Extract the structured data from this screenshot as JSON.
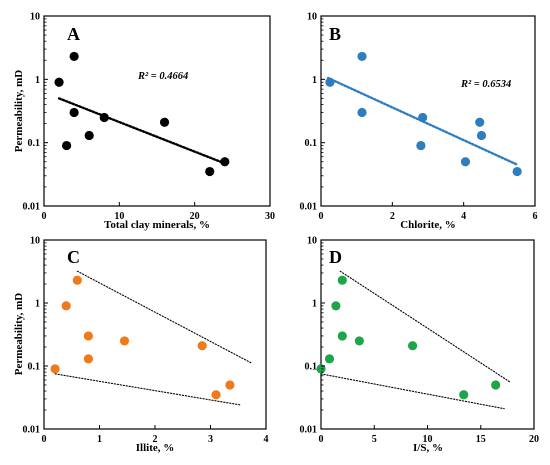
{
  "chart_data": [
    {
      "id": "A",
      "type": "scatter",
      "panel_letter": "A",
      "xlabel": "Total clay minerals, %",
      "ylabel": "Permeability, mD",
      "xlim": [
        0,
        30
      ],
      "ylim": [
        0.01,
        10
      ],
      "yscale": "log",
      "xticks": [
        0,
        10,
        20,
        30
      ],
      "yticks": [
        0.01,
        0.1,
        1,
        10
      ],
      "x": [
        2,
        3,
        4,
        4,
        6,
        8,
        16,
        22,
        24
      ],
      "y": [
        0.9,
        0.09,
        2.3,
        0.3,
        0.13,
        0.25,
        0.21,
        0.035,
        0.05
      ],
      "marker_color": "#000000",
      "annotation": "R² = 0.4664",
      "trendline": {
        "style": "dotted",
        "x": [
          2,
          24
        ],
        "y": [
          0.5,
          0.047
        ]
      }
    },
    {
      "id": "B",
      "type": "scatter",
      "panel_letter": "B",
      "xlabel": "Chlorite, %",
      "ylabel": "",
      "xlim": [
        0,
        6
      ],
      "ylim": [
        0.01,
        10
      ],
      "yscale": "log",
      "xticks": [
        0,
        2,
        4,
        6
      ],
      "yticks": [
        0.01,
        0.1,
        1,
        10
      ],
      "x": [
        0.25,
        1.15,
        1.15,
        2.8,
        2.85,
        4.05,
        4.45,
        4.5,
        5.5
      ],
      "y": [
        0.9,
        2.3,
        0.3,
        0.09,
        0.25,
        0.05,
        0.21,
        0.13,
        0.035
      ],
      "marker_color": "#2e7ebf",
      "annotation": "R² = 0.6534",
      "trendline": {
        "style": "dotted",
        "x": [
          0.2,
          5.5
        ],
        "y": [
          1.05,
          0.045
        ]
      }
    },
    {
      "id": "C",
      "type": "scatter",
      "panel_letter": "C",
      "xlabel": "Illite, %",
      "ylabel": "Permeability, mD",
      "xlim": [
        0,
        4
      ],
      "ylim": [
        0.01,
        10
      ],
      "yscale": "log",
      "xticks": [
        0,
        1,
        2,
        3,
        4
      ],
      "yticks": [
        0.01,
        0.1,
        1,
        10
      ],
      "x": [
        0.2,
        0.4,
        0.6,
        0.8,
        0.8,
        1.45,
        2.85,
        3.1,
        3.35
      ],
      "y": [
        0.09,
        0.9,
        2.3,
        0.3,
        0.13,
        0.25,
        0.21,
        0.035,
        0.05
      ],
      "marker_color": "#f07a1a",
      "envelope": [
        {
          "style": "dotted",
          "x": [
            0.6,
            3.75
          ],
          "y": [
            3.2,
            0.11
          ]
        },
        {
          "style": "dotted",
          "x": [
            0.2,
            3.55
          ],
          "y": [
            0.075,
            0.024
          ]
        }
      ]
    },
    {
      "id": "D",
      "type": "scatter",
      "panel_letter": "D",
      "xlabel": "I/S, %",
      "ylabel": "",
      "xlim": [
        0,
        20
      ],
      "ylim": [
        0.01,
        10
      ],
      "yscale": "log",
      "xticks": [
        0,
        5,
        10,
        15,
        20
      ],
      "yticks": [
        0.01,
        0.1,
        1,
        10
      ],
      "x": [
        0,
        0.8,
        1.4,
        2,
        2,
        3.6,
        8.6,
        13.4,
        16.4
      ],
      "y": [
        0.09,
        0.13,
        0.9,
        2.3,
        0.3,
        0.25,
        0.21,
        0.035,
        0.05
      ],
      "marker_color": "#1ea44a",
      "envelope": [
        {
          "style": "dotted",
          "x": [
            1.8,
            17.8
          ],
          "y": [
            3.2,
            0.055
          ]
        },
        {
          "style": "dotted",
          "x": [
            0,
            17.2
          ],
          "y": [
            0.075,
            0.021
          ]
        }
      ]
    }
  ]
}
